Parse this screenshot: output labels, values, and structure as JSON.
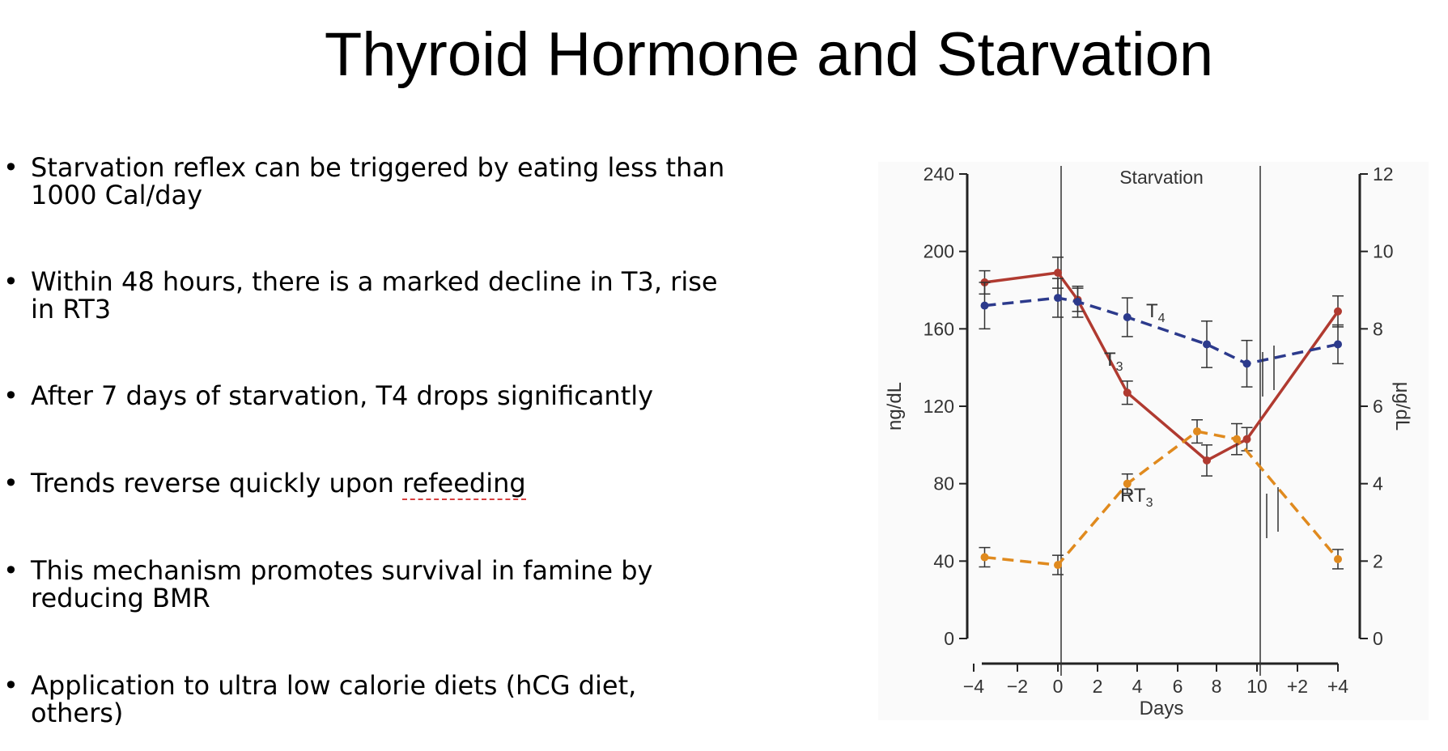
{
  "slide": {
    "title": "Thyroid Hormone and Starvation",
    "bullets": [
      {
        "lines": [
          "Starvation reflex can be triggered by eating less than",
          "1000 Cal/day"
        ]
      },
      {
        "lines": [
          "Within 48 hours, there is a marked decline in T3, rise",
          "in RT3"
        ]
      },
      {
        "lines": [
          "After 7 days of starvation, T4 drops significantly"
        ]
      },
      {
        "pre": "Trends reverse quickly upon ",
        "flag": "refeeding"
      },
      {
        "lines": [
          "This mechanism promotes survival in famine by",
          "reducing BMR"
        ]
      },
      {
        "lines": [
          "Application to ultra low calorie diets (hCG diet,",
          "others)"
        ]
      }
    ]
  },
  "chart_data": {
    "type": "line",
    "region_label": "Starvation",
    "xlabel": "Days",
    "ylabel_left": "ng/dL",
    "ylabel_right": "μg/dL",
    "x_ticks": [
      "−4",
      "−2",
      "0",
      "2",
      "4",
      "6",
      "8",
      "10",
      "+2",
      "+4"
    ],
    "left_ticks": [
      0,
      40,
      80,
      120,
      160,
      200,
      240
    ],
    "right_ticks": [
      0,
      2,
      4,
      6,
      8,
      10,
      12
    ],
    "ylim_left": [
      0,
      240
    ],
    "ylim_right": [
      0,
      12
    ],
    "series": [
      {
        "name": "T",
        "sub": "3",
        "color": "#b03a30",
        "dash": false,
        "axis": "left",
        "x": [
          -3.5,
          0,
          1,
          3.5,
          7.5,
          9.5,
          14
        ],
        "values": [
          184,
          189,
          175,
          127,
          92,
          103,
          169
        ],
        "err": [
          6,
          8,
          6,
          6,
          8,
          6,
          8
        ]
      },
      {
        "name": "T",
        "sub": "4",
        "color": "#2c3a8c",
        "dash": true,
        "axis": "right",
        "x": [
          -3.5,
          0,
          1,
          3.5,
          7.5,
          9.5,
          14
        ],
        "values": [
          8.6,
          8.8,
          8.7,
          8.3,
          7.6,
          7.1,
          7.6
        ],
        "err": [
          0.6,
          0.5,
          0.4,
          0.5,
          0.6,
          0.6,
          0.5
        ]
      },
      {
        "name": "RT",
        "sub": "3",
        "color": "#e08a1e",
        "dash": true,
        "axis": "left",
        "x": [
          -3.5,
          0,
          3.5,
          7,
          9,
          14
        ],
        "values": [
          42,
          38,
          80,
          107,
          103,
          41
        ],
        "err": [
          5,
          5,
          5,
          6,
          8,
          5
        ]
      }
    ]
  }
}
